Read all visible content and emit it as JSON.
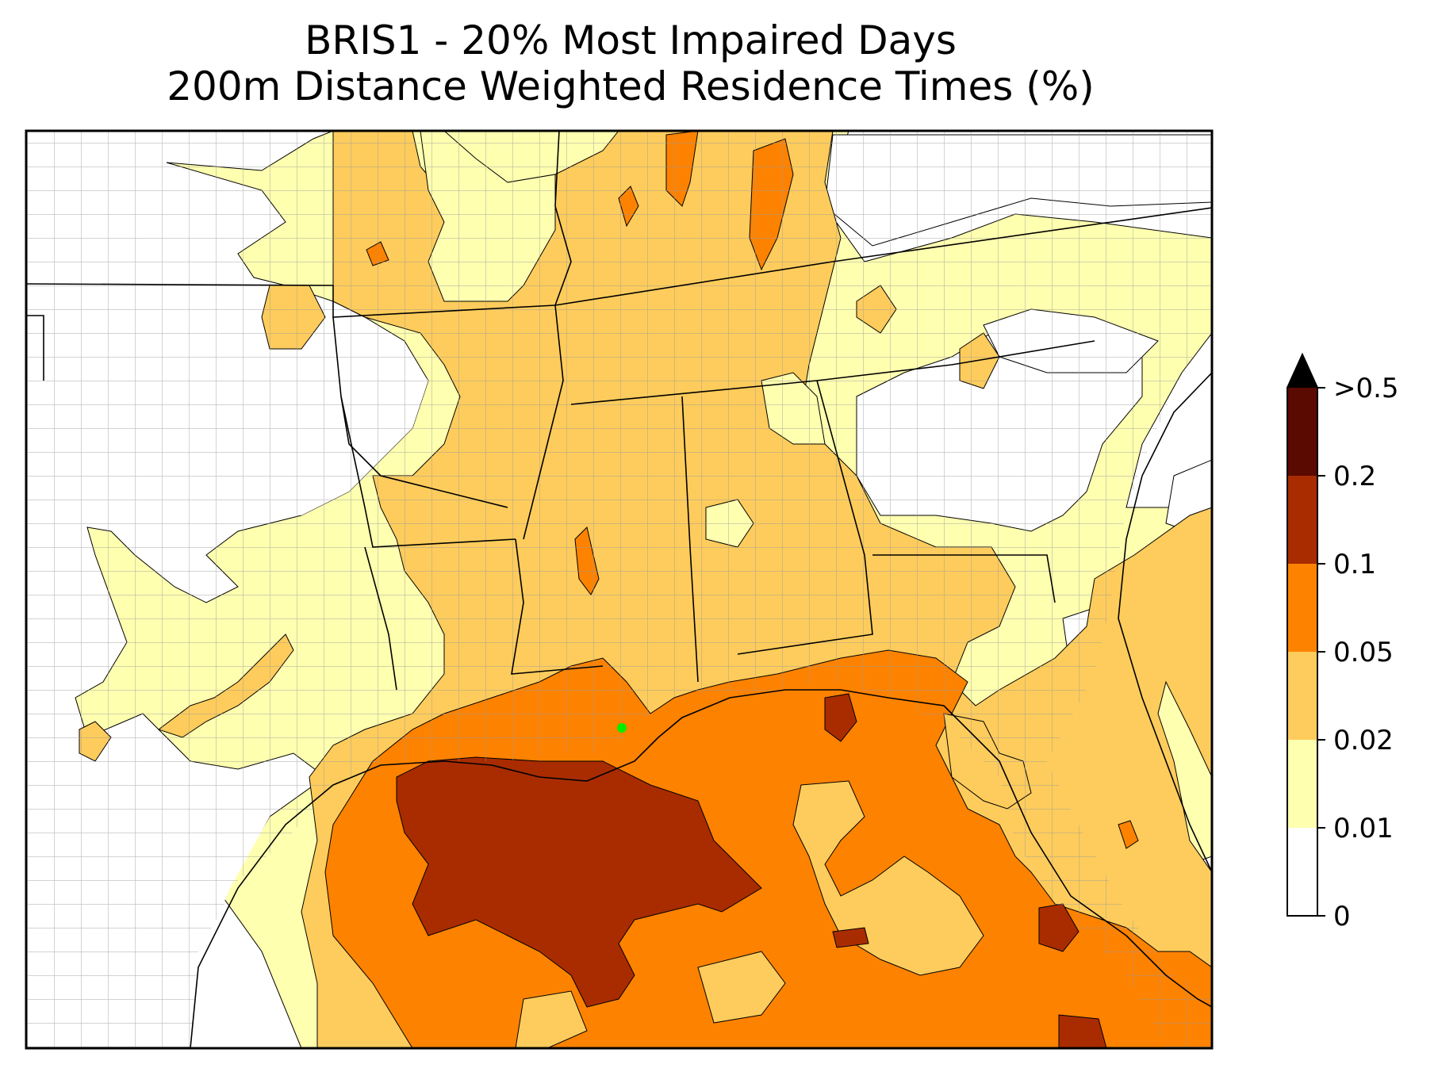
{
  "title": {
    "line1": "BRIS1 - 20% Most Impaired Days",
    "line2": "200m Distance Weighted Residence Times (%)"
  },
  "site": {
    "marker_color": "#00ee00"
  },
  "colorbar": {
    "levels": [
      {
        "label": "0",
        "color": "#ffffff"
      },
      {
        "label": "0.01",
        "color": "#ffffb0"
      },
      {
        "label": "0.02",
        "color": "#fecc5c"
      },
      {
        "label": "0.05",
        "color": "#fd8200"
      },
      {
        "label": "0.1",
        "color": "#a82c00"
      },
      {
        "label": "0.2",
        "color": "#5a0a00"
      },
      {
        "label": ">0.5",
        "color": "#000000"
      }
    ],
    "extend": "max"
  },
  "colors": {
    "white": "#ffffff",
    "light_yellow": "#ffffb0",
    "gold": "#fecc5c",
    "orange": "#fd8200",
    "dark_orange": "#a82c00",
    "county_lines": "#9a9a9a",
    "state_lines": "#000000"
  }
}
